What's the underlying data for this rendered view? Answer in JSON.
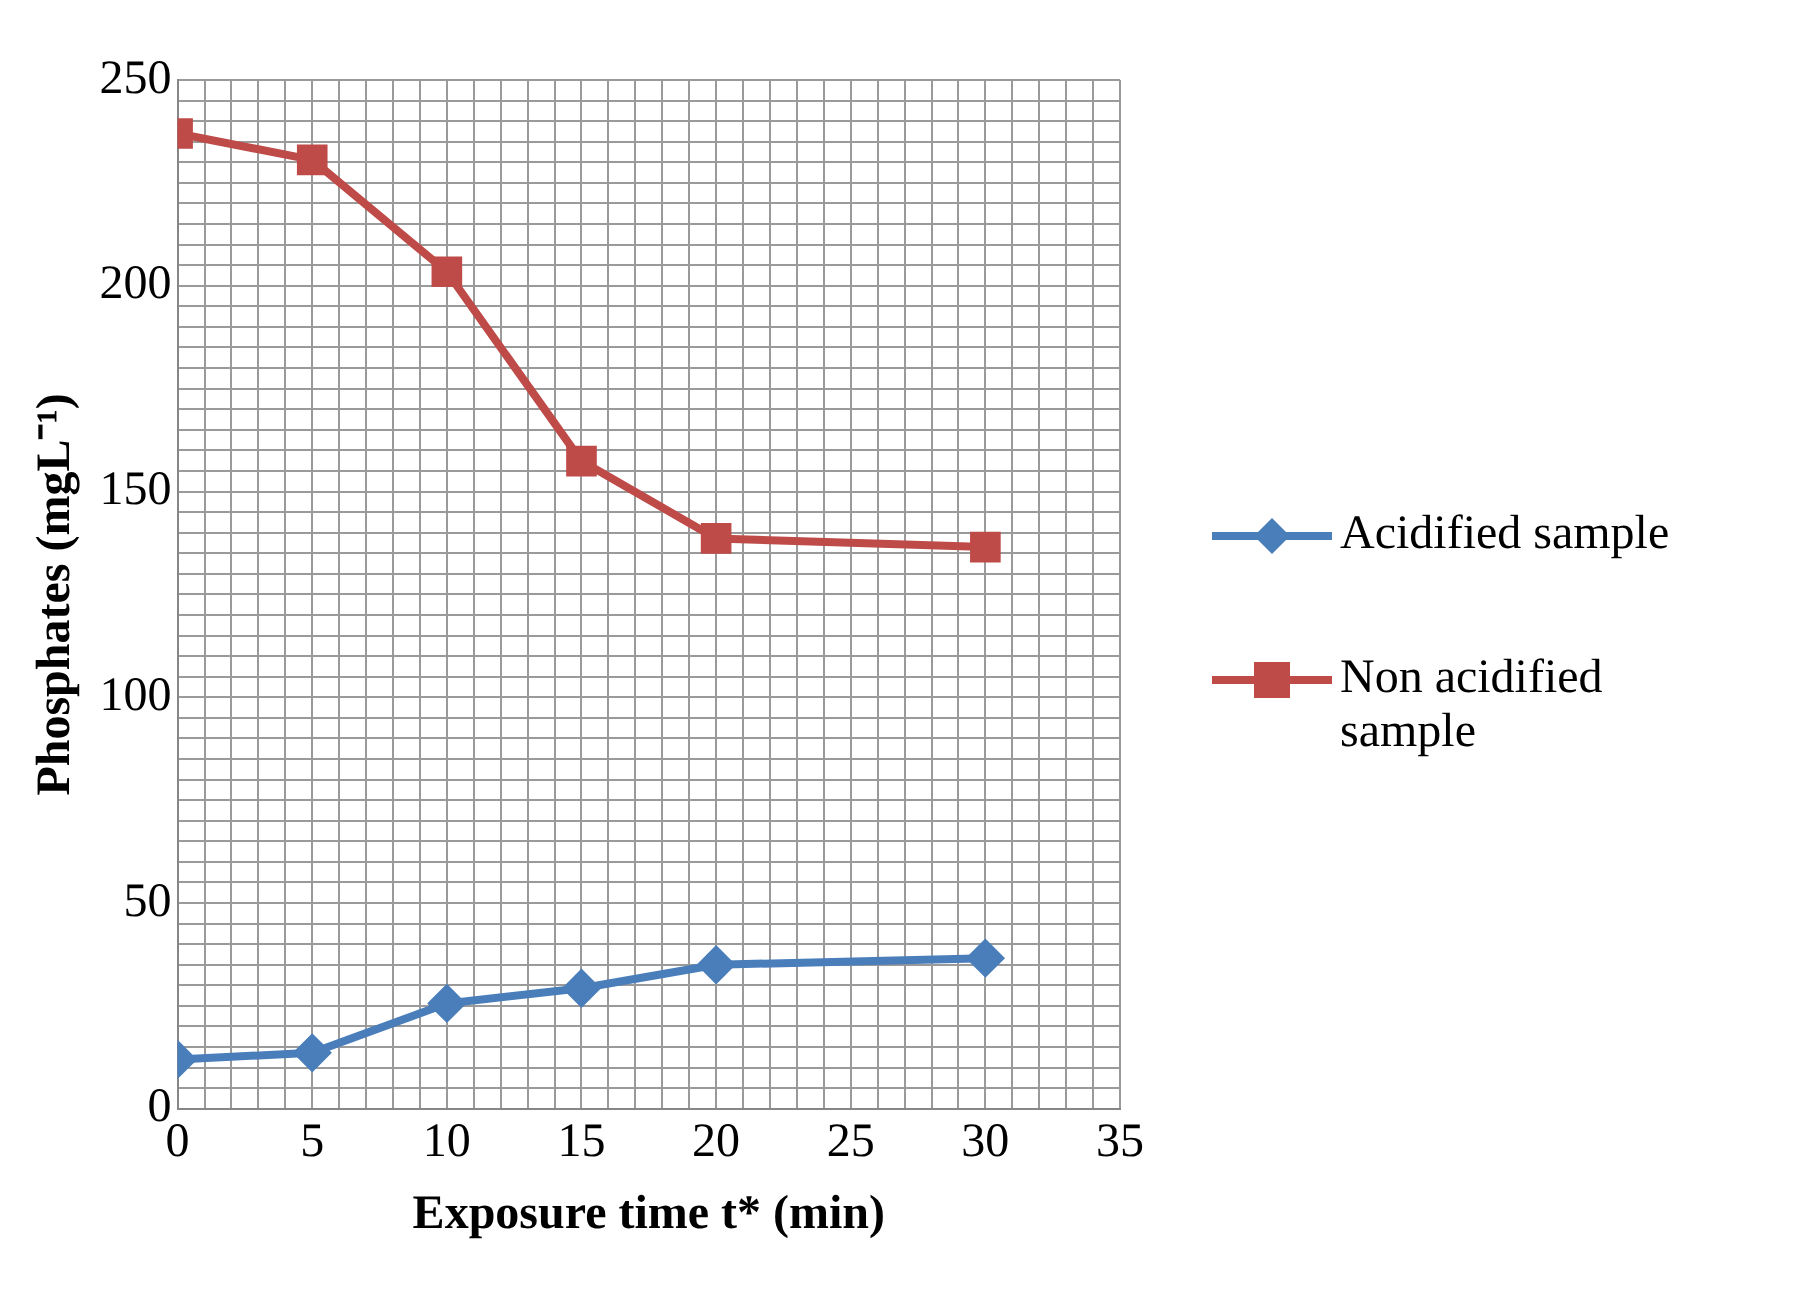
{
  "chart_data": {
    "type": "line",
    "xlabel": "Exposure time t* (min)",
    "ylabel": "Phosphates (mgL⁻¹)",
    "x": [
      0,
      5,
      10,
      15,
      20,
      30
    ],
    "series": [
      {
        "name": "Acidified sample",
        "color": "#4a7ebb",
        "marker": "diamond",
        "values": [
          12,
          13.6,
          25.6,
          29.3,
          35,
          36.6
        ]
      },
      {
        "name": "Non acidified sample",
        "color": "#be4b48",
        "marker": "square",
        "values": [
          237,
          230.6,
          203.4,
          157.4,
          138.6,
          136.5
        ]
      }
    ],
    "xlim": [
      0,
      35
    ],
    "ylim": [
      0,
      250
    ],
    "xticks": [
      0,
      {
        "value": 1,
        "label": null
      },
      {
        "value": 2,
        "label": null
      },
      {
        "value": 3,
        "label": null
      },
      {
        "value": 4,
        "label": null
      },
      5,
      {
        "value": 6,
        "label": null
      },
      {
        "value": 7,
        "label": null
      },
      {
        "value": 8,
        "label": null
      },
      {
        "value": 9,
        "label": null
      },
      10,
      {
        "value": 11,
        "label": null
      },
      {
        "value": 12,
        "label": null
      },
      {
        "value": 13,
        "label": null
      },
      {
        "value": 14,
        "label": null
      },
      15,
      {
        "value": 16,
        "label": null
      },
      {
        "value": 17,
        "label": null
      },
      {
        "value": 18,
        "label": null
      },
      {
        "value": 19,
        "label": null
      },
      20,
      {
        "value": 21,
        "label": null
      },
      {
        "value": 22,
        "label": null
      },
      {
        "value": 23,
        "label": null
      },
      {
        "value": 24,
        "label": null
      },
      25,
      {
        "value": 26,
        "label": null
      },
      {
        "value": 27,
        "label": null
      },
      {
        "value": 28,
        "label": null
      },
      {
        "value": 29,
        "label": null
      },
      30,
      {
        "value": 31,
        "label": null
      },
      {
        "value": 32,
        "label": null
      },
      {
        "value": 33,
        "label": null
      },
      {
        "value": 34,
        "label": null
      },
      35
    ],
    "yticks": [
      0,
      {
        "value": 5,
        "label": null
      },
      {
        "value": 10,
        "label": null
      },
      {
        "value": 15,
        "label": null
      },
      {
        "value": 20,
        "label": null
      },
      {
        "value": 25,
        "label": null
      },
      {
        "value": 30,
        "label": null
      },
      {
        "value": 35,
        "label": null
      },
      {
        "value": 40,
        "label": null
      },
      {
        "value": 45,
        "label": null
      },
      50,
      {
        "value": 55,
        "label": null
      },
      {
        "value": 60,
        "label": null
      },
      {
        "value": 65,
        "label": null
      },
      {
        "value": 70,
        "label": null
      },
      {
        "value": 75,
        "label": null
      },
      {
        "value": 80,
        "label": null
      },
      {
        "value": 85,
        "label": null
      },
      {
        "value": 90,
        "label": null
      },
      {
        "value": 95,
        "label": null
      },
      100,
      {
        "value": 105,
        "label": null
      },
      {
        "value": 110,
        "label": null
      },
      {
        "value": 115,
        "label": null
      },
      {
        "value": 120,
        "label": null
      },
      {
        "value": 125,
        "label": null
      },
      {
        "value": 130,
        "label": null
      },
      {
        "value": 135,
        "label": null
      },
      {
        "value": 140,
        "label": null
      },
      {
        "value": 145,
        "label": null
      },
      150,
      {
        "value": 155,
        "label": null
      },
      {
        "value": 160,
        "label": null
      },
      {
        "value": 165,
        "label": null
      },
      {
        "value": 170,
        "label": null
      },
      {
        "value": 175,
        "label": null
      },
      {
        "value": 180,
        "label": null
      },
      {
        "value": 185,
        "label": null
      },
      {
        "value": 190,
        "label": null
      },
      {
        "value": 195,
        "label": null
      },
      200,
      {
        "value": 205,
        "label": null
      },
      {
        "value": 210,
        "label": null
      },
      {
        "value": 215,
        "label": null
      },
      {
        "value": 220,
        "label": null
      },
      {
        "value": 225,
        "label": null
      },
      {
        "value": 230,
        "label": null
      },
      {
        "value": 235,
        "label": null
      },
      {
        "value": 240,
        "label": null
      },
      {
        "value": 245,
        "label": null
      },
      250
    ],
    "grid": true,
    "legend": "right",
    "line_style": "solid"
  }
}
